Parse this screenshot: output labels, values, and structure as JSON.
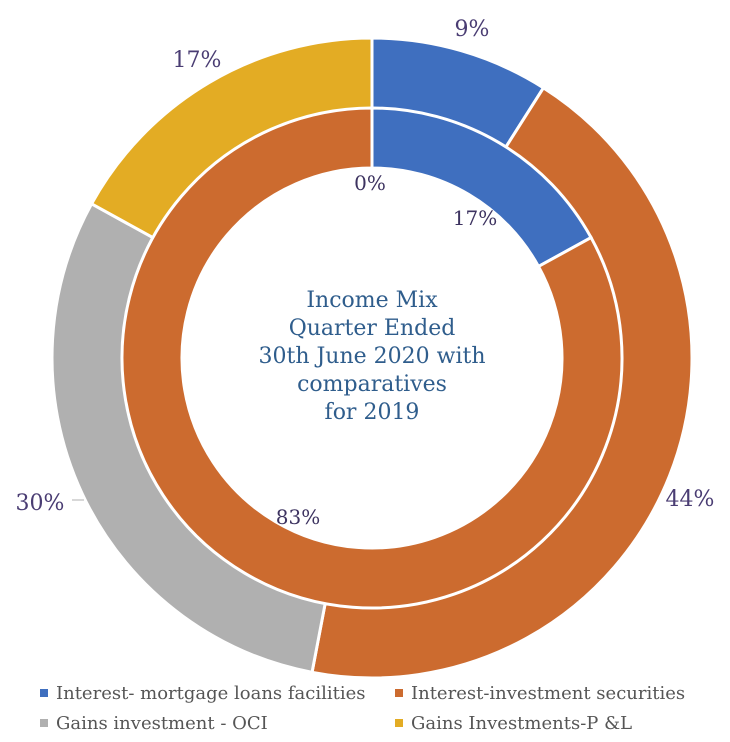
{
  "chart_data": {
    "type": "doughnut",
    "title": "Income Mix Quarter Ended 30th June 2020 with comparatives for 2019",
    "title_lines": [
      "Income Mix",
      "Quarter Ended",
      "30th June 2020 with",
      "comparatives",
      "for 2019"
    ],
    "categories": [
      "Interest- mortgage loans facilities",
      "Interest-investment securities",
      "Gains investment - OCI",
      "Gains Investments-P &L"
    ],
    "colors": [
      "#3f6fbf",
      "#cc6b2f",
      "#b0b0b0",
      "#e3ac24"
    ],
    "series": [
      {
        "ring": "outer",
        "values": [
          9,
          44,
          30,
          17
        ],
        "labels": [
          "9%",
          "44%",
          "30%",
          "17%"
        ]
      },
      {
        "ring": "inner",
        "values": [
          17,
          83,
          0,
          0
        ],
        "labels": [
          "17%",
          "83%",
          "0%",
          ""
        ]
      }
    ],
    "legend_position": "bottom"
  }
}
